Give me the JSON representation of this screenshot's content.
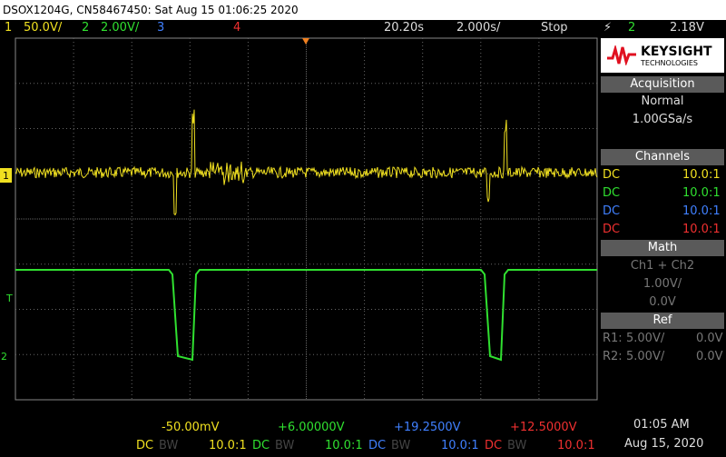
{
  "header": {
    "title": "DSOX1204G, CN58467450: Sat Aug 15 01:06:25 2020"
  },
  "status_bar": {
    "channels": [
      {
        "number": "1",
        "scale": "50.0V/"
      },
      {
        "number": "2",
        "scale": "2.00V/"
      },
      {
        "number": "3"
      },
      {
        "number": "4"
      }
    ],
    "time_delay": "20.20s",
    "time_scale": "2.000s/",
    "run_state": "Stop",
    "trigger": {
      "channel": "2",
      "level": "2.18V"
    }
  },
  "markers": {
    "ch1": "1",
    "trigger": "T",
    "ch2": "2"
  },
  "side_panel": {
    "brand": "KEYSIGHT",
    "brand_sub": "TECHNOLOGIES",
    "acquisition": {
      "title": "Acquisition",
      "mode": "Normal",
      "rate": "1.00GSa/s"
    },
    "channels": {
      "title": "Channels",
      "rows": [
        {
          "coupling": "DC",
          "probe": "10.0:1"
        },
        {
          "coupling": "DC",
          "probe": "10.0:1"
        },
        {
          "coupling": "DC",
          "probe": "10.0:1"
        },
        {
          "coupling": "DC",
          "probe": "10.0:1"
        }
      ]
    },
    "math": {
      "title": "Math",
      "function": "Ch1 + Ch2",
      "scale": "1.00V/",
      "offset": "0.0V"
    },
    "ref": {
      "title": "Ref",
      "rows": [
        {
          "label": "R1:",
          "scale": "5.00V/",
          "offset": "0.0V"
        },
        {
          "label": "R2:",
          "scale": "5.00V/",
          "offset": "0.0V"
        }
      ]
    }
  },
  "footer": {
    "channels": [
      {
        "offset": "-50.00mV",
        "coupling": "DC",
        "bw": "BW",
        "probe": "10.0:1"
      },
      {
        "offset": "+6.00000V",
        "coupling": "DC",
        "bw": "BW",
        "probe": "10.0:1"
      },
      {
        "offset": "+19.2500V",
        "coupling": "DC",
        "bw": "BW",
        "probe": "10.0:1"
      },
      {
        "offset": "+12.5000V",
        "coupling": "DC",
        "bw": "BW",
        "probe": "10.0:1"
      }
    ],
    "time": "01:05 AM",
    "date": "Aug 15, 2020"
  }
}
